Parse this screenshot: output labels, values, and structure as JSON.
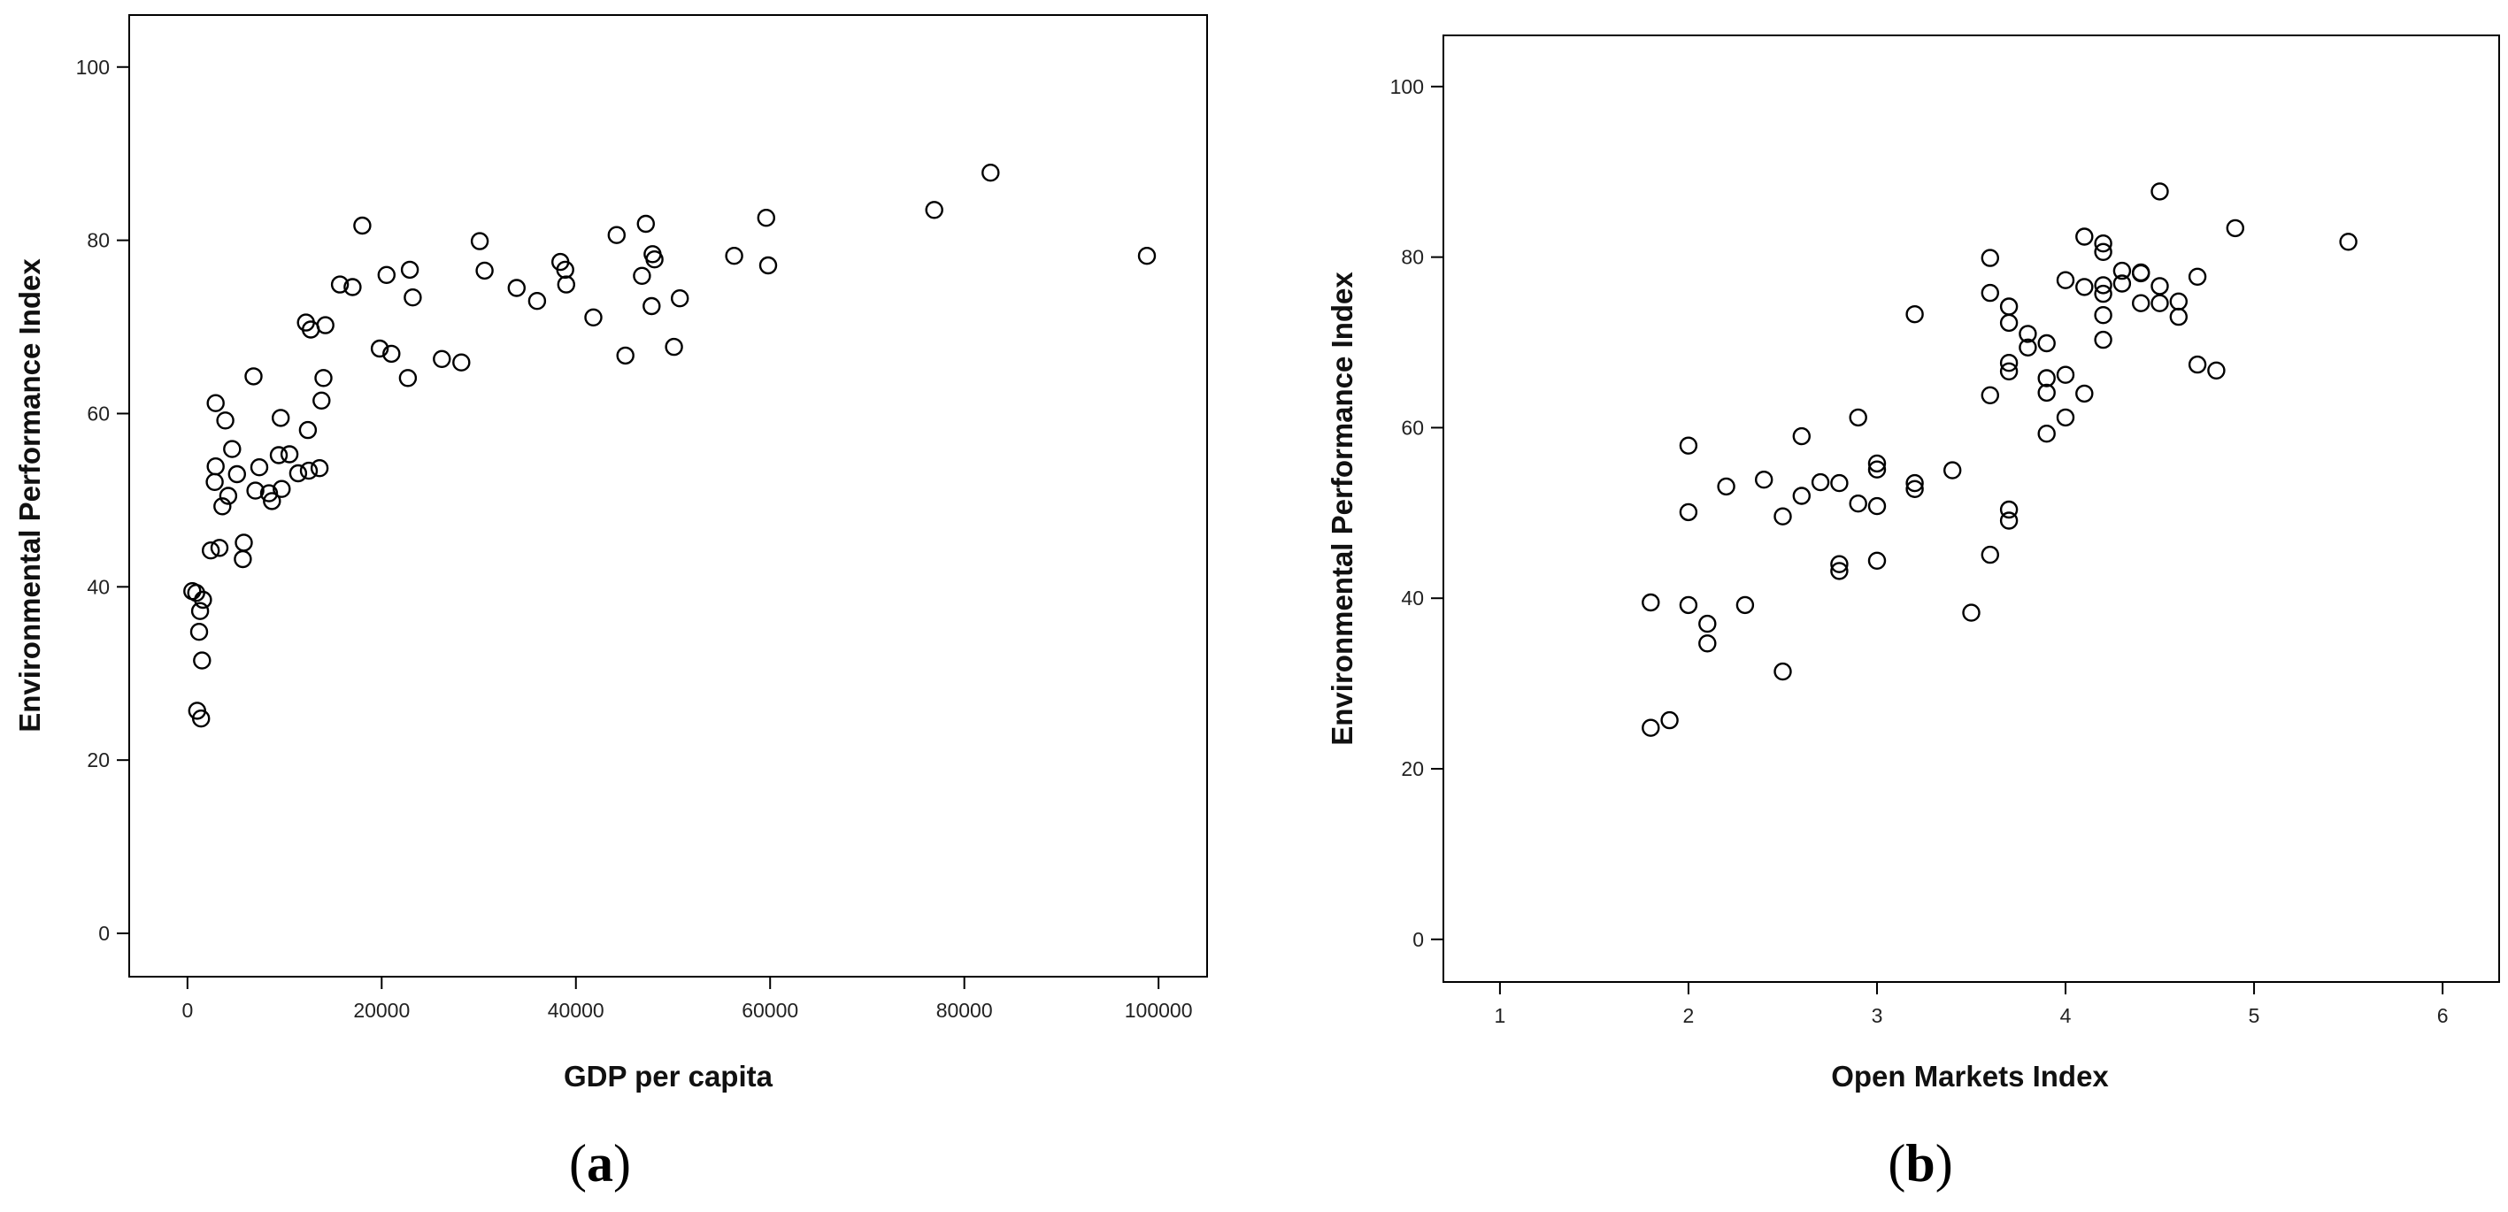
{
  "chart_data": [
    {
      "type": "scatter",
      "panel_label": "a",
      "title": "",
      "xlabel": "GDP per capita",
      "ylabel": "Environmental Performance Index",
      "xlim": [
        -6000,
        105000
      ],
      "ylim": [
        -5,
        106
      ],
      "xticks": [
        0,
        20000,
        40000,
        60000,
        80000,
        100000
      ],
      "yticks": [
        0,
        20,
        40,
        60,
        80,
        100
      ],
      "grid": false,
      "marker": "open-circle",
      "points": [
        [
          500,
          39.5
        ],
        [
          900,
          39.3
        ],
        [
          1300,
          37.2
        ],
        [
          1600,
          38.5
        ],
        [
          1200,
          34.8
        ],
        [
          1500,
          31.5
        ],
        [
          1000,
          25.7
        ],
        [
          1400,
          24.8
        ],
        [
          2400,
          44.2
        ],
        [
          3300,
          44.5
        ],
        [
          2900,
          61.2
        ],
        [
          3900,
          59.2
        ],
        [
          2900,
          53.9
        ],
        [
          2800,
          52.1
        ],
        [
          4600,
          55.9
        ],
        [
          5100,
          53
        ],
        [
          3600,
          49.3
        ],
        [
          4200,
          50.5
        ],
        [
          5800,
          45.1
        ],
        [
          5700,
          43.2
        ],
        [
          6800,
          64.3
        ],
        [
          7400,
          53.8
        ],
        [
          7000,
          51.1
        ],
        [
          8400,
          50.8
        ],
        [
          8700,
          49.9
        ],
        [
          9600,
          59.5
        ],
        [
          9400,
          55.2
        ],
        [
          10500,
          55.3
        ],
        [
          9700,
          51.3
        ],
        [
          11400,
          53.1
        ],
        [
          12400,
          58.1
        ],
        [
          12500,
          53.4
        ],
        [
          13600,
          53.7
        ],
        [
          12200,
          70.5
        ],
        [
          12700,
          69.7
        ],
        [
          14200,
          70.2
        ],
        [
          14000,
          64.1
        ],
        [
          13800,
          61.5
        ],
        [
          15700,
          74.9
        ],
        [
          17000,
          74.6
        ],
        [
          18000,
          81.7
        ],
        [
          19800,
          67.5
        ],
        [
          20500,
          76
        ],
        [
          21000,
          66.9
        ],
        [
          22900,
          76.6
        ],
        [
          23200,
          73.4
        ],
        [
          22700,
          64.1
        ],
        [
          26200,
          66.3
        ],
        [
          28200,
          65.9
        ],
        [
          30100,
          79.9
        ],
        [
          30600,
          76.5
        ],
        [
          33900,
          74.5
        ],
        [
          36000,
          73
        ],
        [
          38400,
          77.5
        ],
        [
          38900,
          76.6
        ],
        [
          39000,
          74.9
        ],
        [
          41800,
          71.1
        ],
        [
          44200,
          80.6
        ],
        [
          45100,
          66.7
        ],
        [
          46800,
          75.9
        ],
        [
          47200,
          81.9
        ],
        [
          47900,
          78.4
        ],
        [
          48100,
          77.8
        ],
        [
          47800,
          72.4
        ],
        [
          50700,
          73.3
        ],
        [
          50100,
          67.7
        ],
        [
          56300,
          78.2
        ],
        [
          59600,
          82.6
        ],
        [
          59800,
          77.1
        ],
        [
          76900,
          83.5
        ],
        [
          82700,
          87.8
        ],
        [
          98800,
          78.2
        ]
      ]
    },
    {
      "type": "scatter",
      "panel_label": "b",
      "title": "",
      "xlabel": "Open Markets Index",
      "ylabel": "Environmental Performance Index",
      "xlim": [
        0.7,
        6.3
      ],
      "ylim": [
        -5,
        106
      ],
      "xticks": [
        1,
        2,
        3,
        4,
        5,
        6
      ],
      "yticks": [
        0,
        20,
        40,
        60,
        80,
        100
      ],
      "grid": false,
      "marker": "open-circle",
      "points": [
        [
          1.8,
          39.5
        ],
        [
          1.8,
          24.8
        ],
        [
          1.9,
          25.7
        ],
        [
          2,
          57.9
        ],
        [
          2,
          50.1
        ],
        [
          2,
          39.2
        ],
        [
          2.1,
          37
        ],
        [
          2.1,
          34.7
        ],
        [
          2.2,
          53.1
        ],
        [
          2.3,
          39.2
        ],
        [
          2.4,
          53.9
        ],
        [
          2.5,
          49.6
        ],
        [
          2.5,
          31.4
        ],
        [
          2.6,
          59
        ],
        [
          2.6,
          52
        ],
        [
          2.7,
          53.6
        ],
        [
          2.8,
          53.5
        ],
        [
          2.8,
          44
        ],
        [
          2.8,
          43.2
        ],
        [
          2.9,
          61.2
        ],
        [
          2.9,
          51.1
        ],
        [
          3,
          55.8
        ],
        [
          3,
          55.1
        ],
        [
          3,
          50.8
        ],
        [
          3,
          44.4
        ],
        [
          3.2,
          73.3
        ],
        [
          3.2,
          53.5
        ],
        [
          3.2,
          52.8
        ],
        [
          3.4,
          55
        ],
        [
          3.5,
          38.3
        ],
        [
          3.6,
          79.9
        ],
        [
          3.6,
          75.8
        ],
        [
          3.6,
          63.8
        ],
        [
          3.6,
          45.1
        ],
        [
          3.7,
          74.2
        ],
        [
          3.7,
          72.3
        ],
        [
          3.7,
          67.6
        ],
        [
          3.7,
          66.6
        ],
        [
          3.7,
          50.4
        ],
        [
          3.7,
          49.1
        ],
        [
          3.8,
          71
        ],
        [
          3.8,
          69.4
        ],
        [
          3.9,
          69.9
        ],
        [
          3.9,
          65.8
        ],
        [
          3.9,
          64.1
        ],
        [
          3.9,
          59.3
        ],
        [
          4,
          77.3
        ],
        [
          4,
          66.2
        ],
        [
          4,
          61.2
        ],
        [
          4.1,
          82.4
        ],
        [
          4.1,
          76.5
        ],
        [
          4.1,
          64
        ],
        [
          4.2,
          81.6
        ],
        [
          4.2,
          80.6
        ],
        [
          4.2,
          76.7
        ],
        [
          4.2,
          75.7
        ],
        [
          4.2,
          73.2
        ],
        [
          4.2,
          70.3
        ],
        [
          4.3,
          78.4
        ],
        [
          4.3,
          76.9
        ],
        [
          4.4,
          78.2
        ],
        [
          4.4,
          78.1
        ],
        [
          4.4,
          74.6
        ],
        [
          4.5,
          87.7
        ],
        [
          4.5,
          76.6
        ],
        [
          4.5,
          74.6
        ],
        [
          4.6,
          74.8
        ],
        [
          4.6,
          73
        ],
        [
          4.7,
          77.7
        ],
        [
          4.7,
          67.4
        ],
        [
          4.8,
          66.7
        ],
        [
          4.9,
          83.4
        ],
        [
          5.5,
          81.8
        ]
      ]
    }
  ]
}
